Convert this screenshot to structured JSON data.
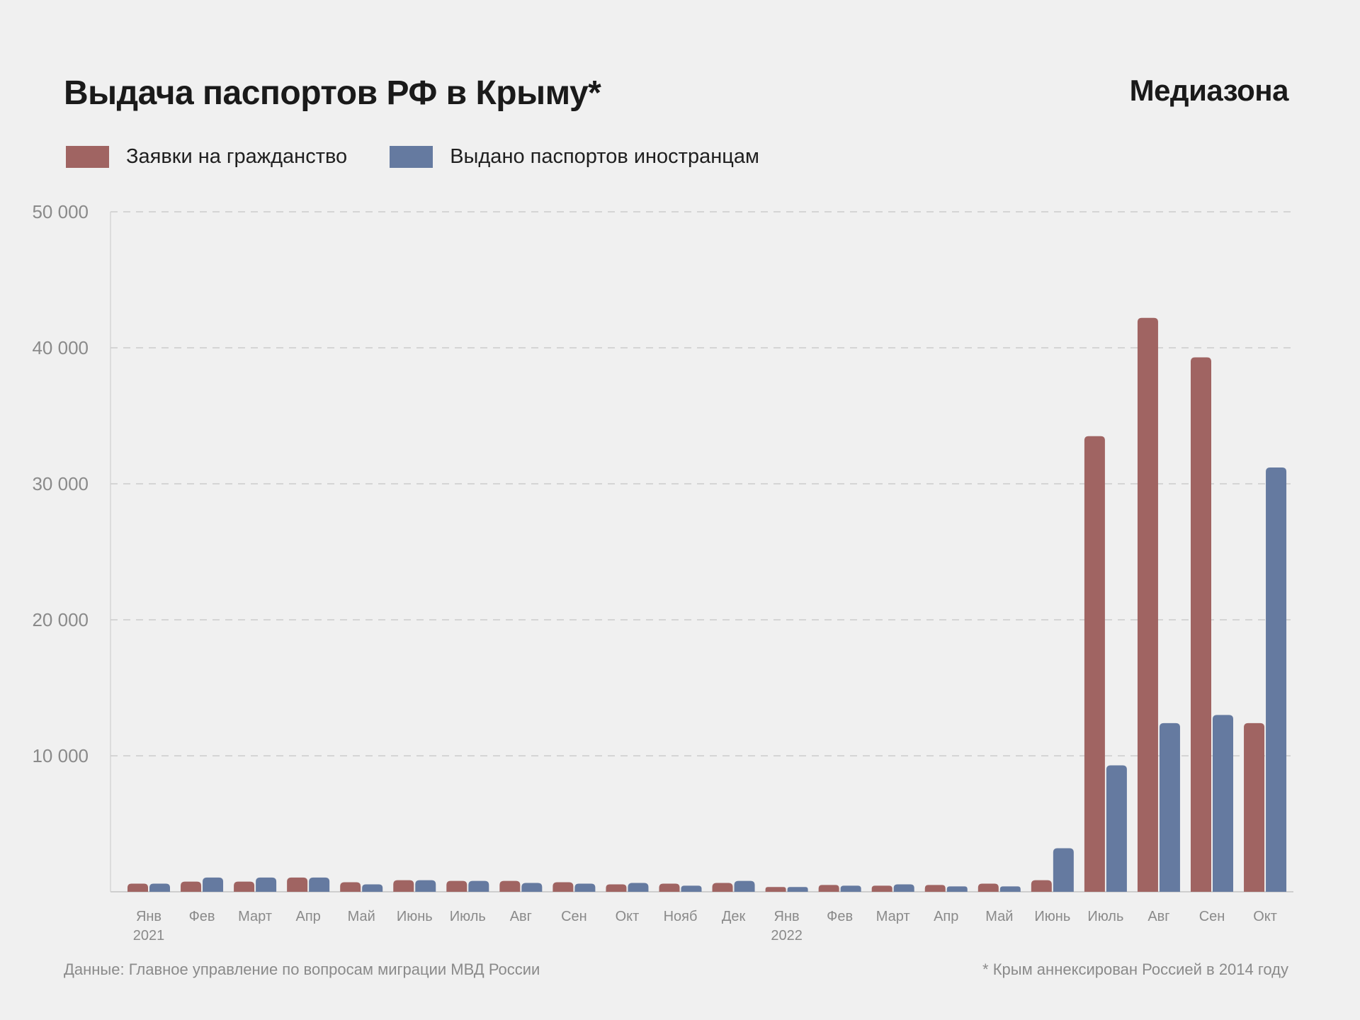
{
  "header": {
    "title": "Выдача паспортов РФ в Крыму*",
    "brand": "Медиазона"
  },
  "footer": {
    "source": "Данные: Главное управление по вопросам миграции МВД России",
    "note": "* Крым аннексирован Россией в 2014 году"
  },
  "chart_data": {
    "type": "bar",
    "title": "Выдача паспортов РФ в Крыму*",
    "xlabel": "",
    "ylabel": "",
    "ylim": [
      0,
      50000
    ],
    "yticks": [
      0,
      10000,
      20000,
      30000,
      40000,
      50000
    ],
    "ytick_labels": [
      "",
      "10 000",
      "20 000",
      "30 000",
      "40 000",
      "50 000"
    ],
    "grid": true,
    "legend_position": "top-left",
    "categories": [
      "Янв",
      "Фев",
      "Март",
      "Апр",
      "Май",
      "Июнь",
      "Июль",
      "Авг",
      "Сен",
      "Окт",
      "Нояб",
      "Дек",
      "Янв",
      "Фев",
      "Март",
      "Апр",
      "Май",
      "Июнь",
      "Июль",
      "Авг",
      "Сен",
      "Окт"
    ],
    "year_labels": [
      "2021",
      "",
      "",
      "",
      "",
      "",
      "",
      "",
      "",
      "",
      "",
      "",
      "2022",
      "",
      "",
      "",
      "",
      "",
      "",
      "",
      "",
      ""
    ],
    "series": [
      {
        "name": "Заявки на гражданство",
        "color": "#a06462",
        "values": [
          600,
          750,
          750,
          1050,
          700,
          850,
          800,
          800,
          700,
          550,
          600,
          650,
          350,
          500,
          450,
          500,
          600,
          850,
          33500,
          42200,
          39300,
          12400
        ]
      },
      {
        "name": "Выдано паспортов иностранцам",
        "color": "#657aa0",
        "values": [
          600,
          1050,
          1050,
          1050,
          550,
          850,
          800,
          650,
          600,
          650,
          450,
          800,
          350,
          450,
          550,
          400,
          400,
          3200,
          9300,
          12400,
          13000,
          31200
        ]
      }
    ]
  }
}
